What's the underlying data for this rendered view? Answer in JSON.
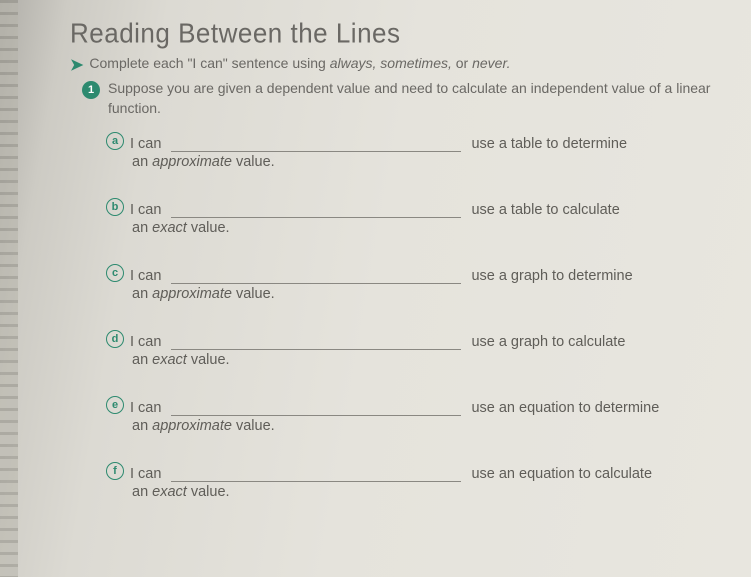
{
  "title": "Reading Between the Lines",
  "instruction_prefix": "Complete each \"I can\" sentence using ",
  "instruction_words": "always, sometimes,",
  "instruction_or": " or ",
  "instruction_last": "never.",
  "question_number": "1",
  "question_text": "Suppose you are given a dependent value and need to calculate an independent value of a linear function.",
  "items": [
    {
      "letter": "a",
      "lead": "I can",
      "tail": "use a table to determine",
      "sub_pre": "an ",
      "sub_em": "approximate",
      "sub_post": " value."
    },
    {
      "letter": "b",
      "lead": "I can",
      "tail": "use a table to calculate",
      "sub_pre": "an ",
      "sub_em": "exact",
      "sub_post": " value."
    },
    {
      "letter": "c",
      "lead": "I can",
      "tail": "use a graph to determine",
      "sub_pre": "an ",
      "sub_em": "approximate",
      "sub_post": " value."
    },
    {
      "letter": "d",
      "lead": "I can",
      "tail": "use a graph to calculate",
      "sub_pre": "an ",
      "sub_em": "exact",
      "sub_post": " value."
    },
    {
      "letter": "e",
      "lead": "I can",
      "tail": "use an equation to determine",
      "sub_pre": "an ",
      "sub_em": "approximate",
      "sub_post": " value."
    },
    {
      "letter": "f",
      "lead": "I can",
      "tail": "use an equation to calculate",
      "sub_pre": "an ",
      "sub_em": "exact",
      "sub_post": " value."
    }
  ],
  "colors": {
    "accent": "#2d8a6f",
    "text": "#5f5d58",
    "title": "#6a6864",
    "line": "#8a8882"
  }
}
